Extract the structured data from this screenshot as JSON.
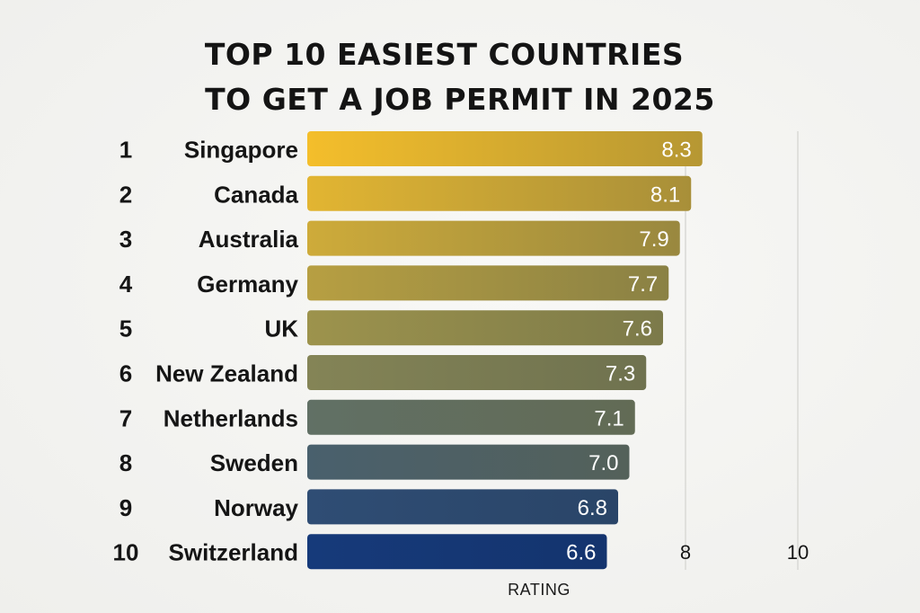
{
  "chart_data": {
    "type": "bar",
    "orientation": "horizontal",
    "title_lines": [
      "TOP 10 EASIEST COUNTRIES",
      "TO GET A JOB PERMIT IN 2025"
    ],
    "title": "TOP 10 EASIEST COUNTRIES TO GET A JOB PERMIT IN 2025",
    "xlabel": "RATING",
    "ylabel": "",
    "ranks": [
      "1",
      "2",
      "3",
      "4",
      "5",
      "6",
      "7",
      "8",
      "9",
      "10"
    ],
    "categories": [
      "Singapore",
      "Canada",
      "Australia",
      "Germany",
      "UK",
      "New Zealand",
      "Netherlands",
      "Sweden",
      "Norway",
      "Switzerland"
    ],
    "values": [
      8.3,
      8.1,
      7.9,
      7.7,
      7.6,
      7.3,
      7.1,
      7.0,
      6.8,
      6.6
    ],
    "value_labels": [
      "8.3",
      "8.1",
      "7.9",
      "7.7",
      "7.6",
      "7.3",
      "7.1",
      "7.0",
      "6.8",
      "6.6"
    ],
    "x_ticks": [
      {
        "value": 8,
        "label": "8"
      },
      {
        "value": 10,
        "label": "10"
      }
    ],
    "grid": true,
    "legend": "none",
    "colors": {
      "top_gold": "#f3bd2a",
      "mid_olive": "#8d8a52",
      "slate": "#566a6a",
      "navy": "#163a7a",
      "bar_right_shade": "#7a7a4e"
    }
  }
}
